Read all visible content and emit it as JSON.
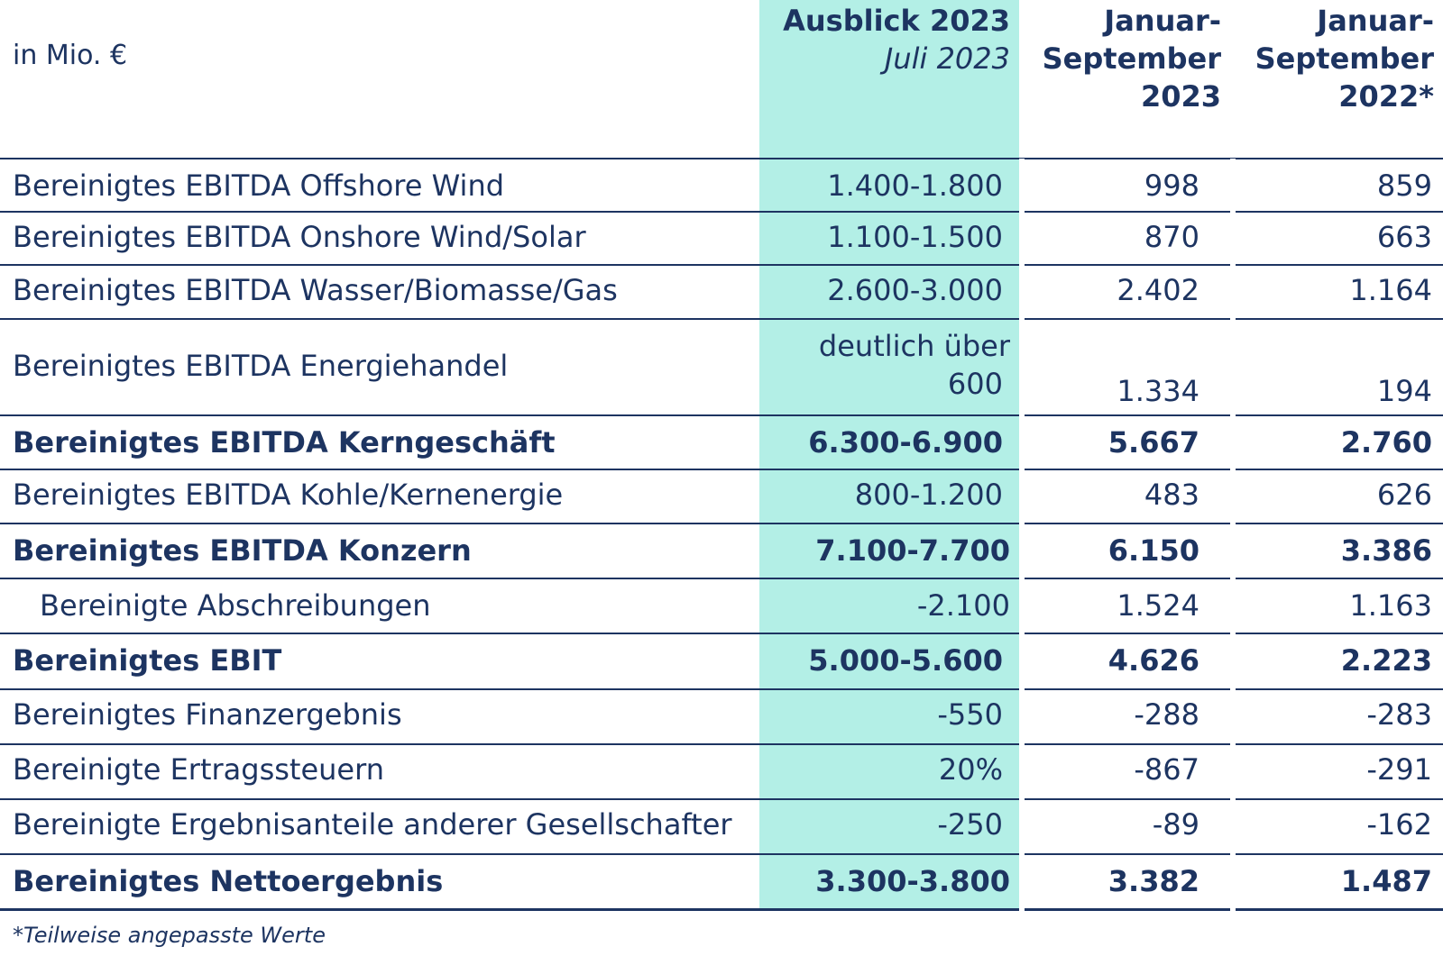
{
  "unit_label": "in Mio. €",
  "headers": {
    "col1_title": "Ausblick 2023",
    "col1_subtitle": "Juli 2023",
    "col2_line1": "Januar-",
    "col2_line2": "September",
    "col2_line3": "2023",
    "col3_line1": "Januar-",
    "col3_line2": "September",
    "col3_line3": "2022*"
  },
  "rows": [
    {
      "label": "Bereinigtes EBITDA Offshore Wind",
      "outlook": "1.400-1.800",
      "ytd2023": "998",
      "ytd2022": "859"
    },
    {
      "label": "Bereinigtes EBITDA Onshore Wind/Solar",
      "outlook": "1.100-1.500",
      "ytd2023": "870",
      "ytd2022": "663"
    },
    {
      "label": "Bereinigtes EBITDA Wasser/Biomasse/Gas",
      "outlook": "2.600-3.000",
      "ytd2023": "2.402",
      "ytd2022": "1.164"
    },
    {
      "label": "Bereinigtes EBITDA Energiehandel",
      "outlook_line1": "deutlich über",
      "outlook_line2": "600",
      "ytd2023": "1.334",
      "ytd2022": "194"
    },
    {
      "label": "Bereinigtes EBITDA Kerngeschäft",
      "outlook": "6.300-6.900",
      "ytd2023": "5.667",
      "ytd2022": "2.760"
    },
    {
      "label": "Bereinigtes EBITDA Kohle/Kernenergie",
      "outlook": "800-1.200",
      "ytd2023": "483",
      "ytd2022": "626"
    },
    {
      "label": "Bereinigtes EBITDA Konzern",
      "outlook": "7.100-7.700",
      "ytd2023": "6.150",
      "ytd2022": "3.386"
    },
    {
      "label": "Bereinigte Abschreibungen",
      "outlook": "-2.100",
      "ytd2023": "1.524",
      "ytd2022": "1.163"
    },
    {
      "label": "Bereinigtes EBIT",
      "outlook": "5.000-5.600",
      "ytd2023": "4.626",
      "ytd2022": "2.223"
    },
    {
      "label": "Bereinigtes Finanzergebnis",
      "outlook": "-550",
      "ytd2023": "-288",
      "ytd2022": "-283"
    },
    {
      "label": "Bereinigte Ertragssteuern",
      "outlook": "20%",
      "ytd2023": "-867",
      "ytd2022": "-291"
    },
    {
      "label": "Bereinigte Ergebnisanteile anderer Gesellschafter",
      "outlook": "-250",
      "ytd2023": "-89",
      "ytd2022": "-162"
    },
    {
      "label": "Bereinigtes Nettoergebnis",
      "outlook": "3.300-3.800",
      "ytd2023": "3.382",
      "ytd2022": "1.487"
    }
  ],
  "footnote": "*Teilweise angepasste Werte",
  "colors": {
    "text": "#1d3461",
    "highlight": "#b3efe6"
  }
}
